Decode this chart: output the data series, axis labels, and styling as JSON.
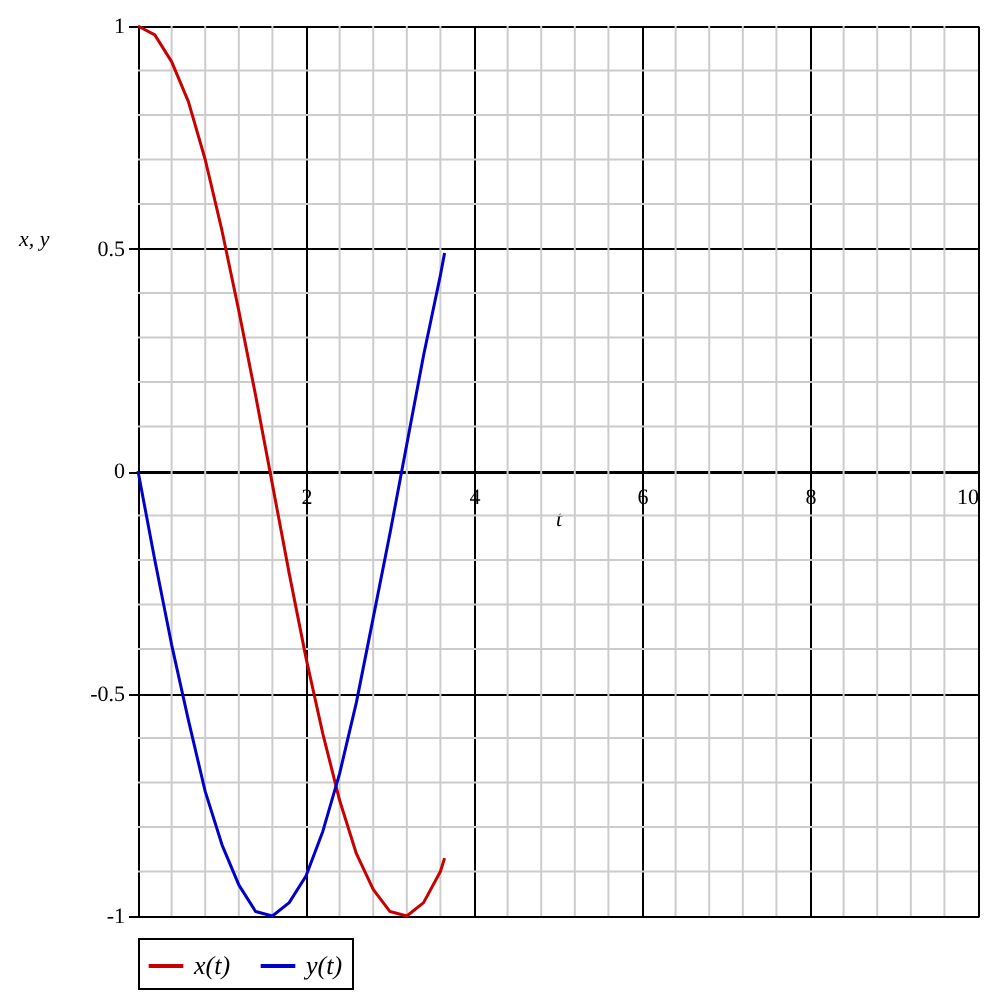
{
  "chart_data": {
    "type": "line",
    "xlabel": "t",
    "ylabel": "x, y",
    "x": [
      0,
      0.2,
      0.4,
      0.6,
      0.8,
      1.0,
      1.2,
      1.4,
      1.6,
      1.8,
      2.0,
      2.2,
      2.4,
      2.6,
      2.8,
      3.0,
      3.2,
      3.4,
      3.6,
      3.65
    ],
    "series": [
      {
        "name": "x(t)",
        "color": "#c80000",
        "values": [
          1,
          0.98,
          0.92,
          0.83,
          0.7,
          0.54,
          0.36,
          0.17,
          -0.03,
          -0.23,
          -0.42,
          -0.59,
          -0.74,
          -0.86,
          -0.94,
          -0.99,
          -1.0,
          -0.97,
          -0.9,
          -0.87
        ]
      },
      {
        "name": "y(t)",
        "color": "#0000c8",
        "values": [
          0,
          -0.2,
          -0.39,
          -0.56,
          -0.72,
          -0.84,
          -0.93,
          -0.99,
          -1.0,
          -0.97,
          -0.91,
          -0.81,
          -0.68,
          -0.52,
          -0.33,
          -0.14,
          0.06,
          0.26,
          0.44,
          0.49
        ]
      }
    ],
    "xlim": [
      0,
      10
    ],
    "ylim": [
      -1,
      1
    ],
    "xticks": [
      {
        "value": 0,
        "label": null
      },
      2,
      4,
      6,
      8,
      10
    ],
    "yticks": [
      -1,
      -0.5,
      0,
      0.5,
      1
    ],
    "grid": true,
    "legend": "bottom",
    "marker": "none",
    "line_style": "solid"
  }
}
